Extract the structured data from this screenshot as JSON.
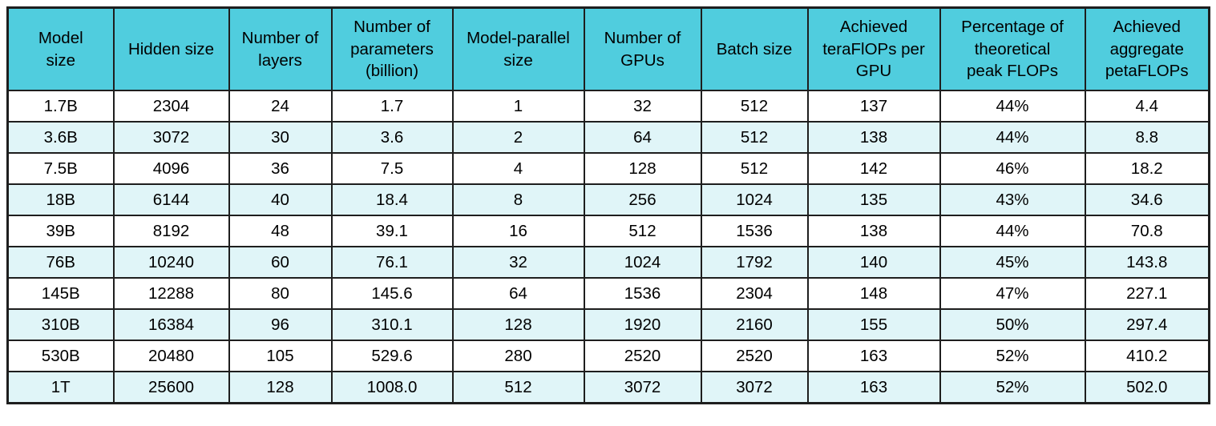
{
  "table": {
    "headers": [
      "Model\nsize",
      "Hidden size",
      "Number of\nlayers",
      "Number of\nparameters\n(billion)",
      "Model-parallel\nsize",
      "Number of\nGPUs",
      "Batch size",
      "Achieved\nteraFlOPs per\nGPU",
      "Percentage of\ntheoretical\npeak FLOPs",
      "Achieved\naggregate\npetaFLOPs"
    ]
  },
  "chart_data": {
    "type": "table",
    "columns": [
      "Model size",
      "Hidden size",
      "Number of layers",
      "Number of parameters (billion)",
      "Model-parallel size",
      "Number of GPUs",
      "Batch size",
      "Achieved teraFlOPs per GPU",
      "Percentage of theoretical peak FLOPs",
      "Achieved aggregate petaFLOPs"
    ],
    "rows": [
      [
        "1.7B",
        "2304",
        "24",
        "1.7",
        "1",
        "32",
        "512",
        "137",
        "44%",
        "4.4"
      ],
      [
        "3.6B",
        "3072",
        "30",
        "3.6",
        "2",
        "64",
        "512",
        "138",
        "44%",
        "8.8"
      ],
      [
        "7.5B",
        "4096",
        "36",
        "7.5",
        "4",
        "128",
        "512",
        "142",
        "46%",
        "18.2"
      ],
      [
        "18B",
        "6144",
        "40",
        "18.4",
        "8",
        "256",
        "1024",
        "135",
        "43%",
        "34.6"
      ],
      [
        "39B",
        "8192",
        "48",
        "39.1",
        "16",
        "512",
        "1536",
        "138",
        "44%",
        "70.8"
      ],
      [
        "76B",
        "10240",
        "60",
        "76.1",
        "32",
        "1024",
        "1792",
        "140",
        "45%",
        "143.8"
      ],
      [
        "145B",
        "12288",
        "80",
        "145.6",
        "64",
        "1536",
        "2304",
        "148",
        "47%",
        "227.1"
      ],
      [
        "310B",
        "16384",
        "96",
        "310.1",
        "128",
        "1920",
        "2160",
        "155",
        "50%",
        "297.4"
      ],
      [
        "530B",
        "20480",
        "105",
        "529.6",
        "280",
        "2520",
        "2520",
        "163",
        "52%",
        "410.2"
      ],
      [
        "1T",
        "25600",
        "128",
        "1008.0",
        "512",
        "3072",
        "3072",
        "163",
        "52%",
        "502.0"
      ]
    ]
  },
  "colors": {
    "header_bg": "#50cdde",
    "row_alt_bg": "#e0f5f8",
    "row_bg": "#ffffff",
    "border": "#1e1e1e",
    "text": "#000000"
  }
}
